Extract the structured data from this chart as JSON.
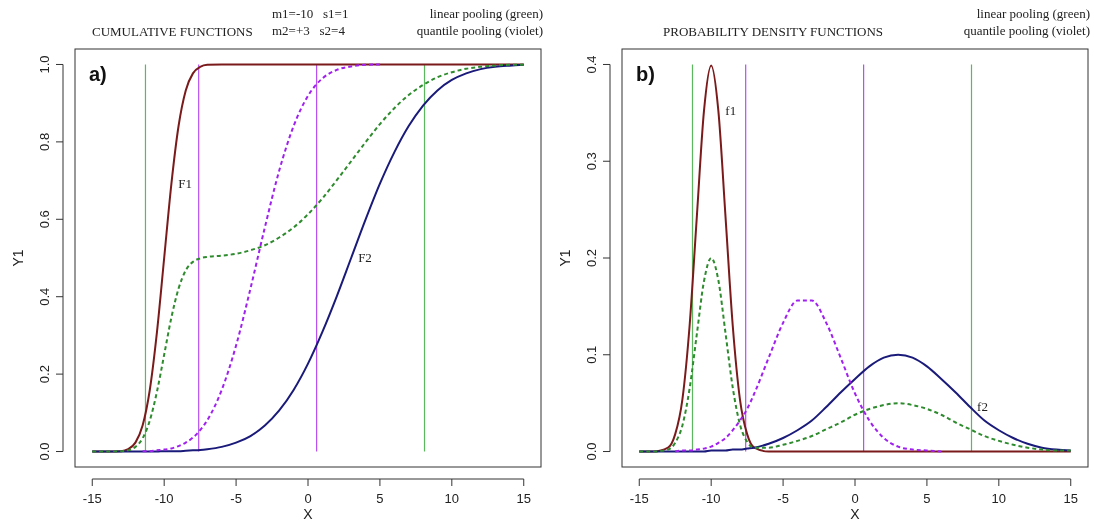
{
  "chart_data": [
    {
      "type": "line",
      "title": "CUMULATIVE FUNCTIONS",
      "xlabel": "X",
      "ylabel": "Y1",
      "grid": false,
      "annotations": [
        "a)",
        "m1=-10   s1=1\nm2=+3   s2=4",
        "linear pooling (green)\nquantile pooling (violet)",
        {
          "text": "F1",
          "x": -9.5,
          "y": 0.691
        },
        {
          "text": "F2",
          "x": 3,
          "y": 0.5
        }
      ],
      "x": [
        -15,
        -14,
        -13,
        -12.5,
        -12,
        -11.5,
        -11,
        -10.5,
        -10,
        -9.5,
        -9,
        -8.5,
        -8,
        -7.5,
        -7,
        -6,
        -5,
        -4,
        -3,
        -2,
        -1,
        0,
        1,
        2,
        3,
        4,
        5,
        6,
        7,
        8,
        9,
        10,
        11,
        12,
        13,
        14,
        15
      ],
      "xlim": [
        -16.2,
        16.2
      ],
      "xticks": [
        -15,
        -10,
        -5,
        0,
        5,
        10,
        15
      ],
      "ylim": [
        -0.04,
        1.04
      ],
      "yticks": [
        {
          "value": 0,
          "label": "0.0"
        },
        {
          "value": 0.2,
          "label": "0.2"
        },
        {
          "value": 0.4,
          "label": "0.4"
        },
        {
          "value": 0.6,
          "label": "0.6"
        },
        {
          "value": 0.8,
          "label": "0.8"
        },
        {
          "value": 1,
          "label": "1.0"
        }
      ],
      "ref_lines": [
        {
          "axis": "x",
          "value": -11.3,
          "color": "#5cb85c"
        },
        {
          "axis": "x",
          "value": 8.1,
          "color": "#5cb85c"
        },
        {
          "axis": "x",
          "value": -7.6,
          "color": "#b44ff0"
        },
        {
          "axis": "x",
          "value": 0.6,
          "color": "#b44ff0"
        }
      ],
      "series": [
        {
          "color": "#2e8b2e",
          "line_style": "dashed",
          "values": [
            0,
            0,
            0.001,
            0.003,
            0.012,
            0.034,
            0.08,
            0.155,
            0.25,
            0.346,
            0.421,
            0.468,
            0.49,
            0.499,
            0.503,
            0.506,
            0.511,
            0.52,
            0.533,
            0.553,
            0.579,
            0.613,
            0.654,
            0.701,
            0.75,
            0.799,
            0.846,
            0.887,
            0.921,
            0.947,
            0.967,
            0.98,
            0.989,
            0.994,
            0.997,
            0.999,
            0.999
          ]
        },
        {
          "color": "#a020f0",
          "line_style": "dashed",
          "values": [
            null,
            null,
            null,
            null,
            null,
            0.001,
            0.001,
            0.003,
            0.005,
            0.008,
            0.014,
            0.023,
            0.036,
            0.055,
            0.081,
            0.159,
            0.274,
            0.421,
            0.579,
            0.726,
            0.841,
            0.919,
            0.964,
            0.986,
            0.995,
            0.999,
            1,
            null,
            null,
            null,
            null,
            null,
            null,
            null,
            null,
            null,
            null
          ]
        },
        {
          "color": "#7a1a1a",
          "line_style": "solid",
          "values": [
            0,
            0,
            0.001,
            0.006,
            0.023,
            0.067,
            0.159,
            0.309,
            0.5,
            0.691,
            0.841,
            0.933,
            0.977,
            0.994,
            0.999,
            1,
            1,
            1,
            1,
            1,
            1,
            1,
            1,
            1,
            1,
            1,
            1,
            1,
            1,
            1,
            1,
            1,
            1,
            1,
            1,
            1,
            1
          ]
        },
        {
          "color": "#1a1a7a",
          "line_style": "solid",
          "values": [
            0,
            0,
            0,
            0,
            0,
            0,
            0,
            0,
            0.001,
            0.001,
            0.001,
            0.002,
            0.003,
            0.004,
            0.006,
            0.012,
            0.023,
            0.04,
            0.067,
            0.106,
            0.159,
            0.227,
            0.309,
            0.401,
            0.5,
            0.599,
            0.692,
            0.773,
            0.841,
            0.894,
            0.933,
            0.96,
            0.977,
            0.988,
            0.994,
            0.997,
            0.999
          ]
        }
      ]
    },
    {
      "type": "line",
      "title": "PROBABILITY DENSITY FUNCTIONS",
      "xlabel": "X",
      "ylabel": "Y1",
      "grid": false,
      "annotations": [
        "b)",
        "linear pooling (green)\nquantile pooling (violet)",
        {
          "text": "f1",
          "x": -9.5,
          "y": 0.352
        },
        {
          "text": "f2",
          "x": 8,
          "y": 0.046
        }
      ],
      "x": [
        -15,
        -14,
        -13,
        -12.5,
        -12,
        -11.5,
        -11,
        -10.5,
        -10,
        -9.5,
        -9,
        -8.5,
        -8,
        -7.5,
        -7,
        -6,
        -5,
        -4,
        -3,
        -2,
        -1,
        0,
        1,
        2,
        3,
        4,
        5,
        6,
        7,
        8,
        9,
        10,
        11,
        12,
        13,
        14,
        15
      ],
      "xlim": [
        -16.2,
        16.2
      ],
      "xticks": [
        -15,
        -10,
        -5,
        0,
        5,
        10,
        15
      ],
      "ylim": [
        -0.016,
        0.416
      ],
      "yticks": [
        {
          "value": 0,
          "label": "0.0"
        },
        {
          "value": 0.1,
          "label": "0.1"
        },
        {
          "value": 0.2,
          "label": "0.2"
        },
        {
          "value": 0.3,
          "label": "0.3"
        },
        {
          "value": 0.4,
          "label": "0.4"
        }
      ],
      "ref_lines": [
        {
          "axis": "x",
          "value": -11.3,
          "color": "#5cb85c"
        },
        {
          "axis": "x",
          "value": 8.1,
          "color": "#5cb85c"
        },
        {
          "axis": "x",
          "value": -7.6,
          "color": "#b44ff0"
        },
        {
          "axis": "x",
          "value": 0.6,
          "color": "#b44ff0"
        }
      ],
      "series": [
        {
          "color": "#2e8b2e",
          "line_style": "dashed",
          "values": [
            0,
            0,
            0.002,
            0.009,
            0.027,
            0.065,
            0.121,
            0.176,
            0.2,
            0.177,
            0.122,
            0.066,
            0.028,
            0.01,
            0.004,
            0.004,
            0.007,
            0.011,
            0.016,
            0.023,
            0.03,
            0.038,
            0.044,
            0.048,
            0.05,
            0.048,
            0.044,
            0.038,
            0.03,
            0.023,
            0.016,
            0.011,
            0.007,
            0.004,
            0.002,
            0.001,
            0.001
          ]
        },
        {
          "color": "#a020f0",
          "line_style": "dashed",
          "values": [
            null,
            null,
            null,
            0,
            0.001,
            0.001,
            0.002,
            0.003,
            0.005,
            0.009,
            0.014,
            0.022,
            0.032,
            0.044,
            0.06,
            0.097,
            0.133,
            0.156,
            0.156,
            0.133,
            0.097,
            0.06,
            0.032,
            0.014,
            0.005,
            0.002,
            0.001,
            0,
            null,
            null,
            null,
            null,
            null,
            null,
            null,
            null,
            null
          ]
        },
        {
          "color": "#7a1a1a",
          "line_style": "solid",
          "values": [
            0,
            0,
            0.004,
            0.018,
            0.054,
            0.13,
            0.242,
            0.352,
            0.399,
            0.352,
            0.242,
            0.13,
            0.054,
            0.018,
            0.004,
            0,
            0,
            0,
            0,
            0,
            0,
            0,
            0,
            0,
            0,
            0,
            0,
            0,
            0,
            0,
            0,
            0,
            0,
            0,
            0,
            0,
            0
          ]
        },
        {
          "color": "#1a1a7a",
          "line_style": "solid",
          "values": [
            0,
            0,
            0,
            0,
            0,
            0,
            0,
            0,
            0.001,
            0.001,
            0.001,
            0.002,
            0.002,
            0.003,
            0.004,
            0.008,
            0.014,
            0.022,
            0.032,
            0.046,
            0.061,
            0.075,
            0.088,
            0.097,
            0.1,
            0.097,
            0.088,
            0.075,
            0.061,
            0.046,
            0.032,
            0.022,
            0.014,
            0.008,
            0.004,
            0.002,
            0.001
          ]
        }
      ]
    }
  ]
}
